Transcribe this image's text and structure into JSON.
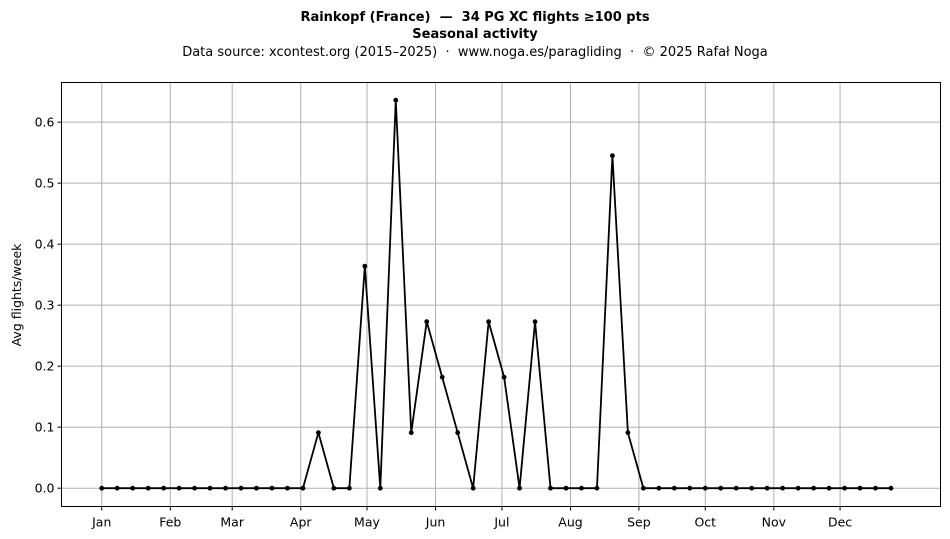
{
  "chart_data": {
    "type": "line",
    "title": "Rainkopf (France)  —  34 PG XC flights ≥100 pts",
    "title_line2": "Seasonal activity",
    "subtitle": "Data source: xcontest.org (2015–2025)  ·  www.noga.es/paragliding  ·  © 2025 Rafał Noga",
    "ylabel": "Avg flights/week",
    "xlabel": "",
    "x_ticks": [
      {
        "label": "Jan",
        "week": 1
      },
      {
        "label": "Feb",
        "week": 5.43
      },
      {
        "label": "Mar",
        "week": 9.43
      },
      {
        "label": "Apr",
        "week": 13.86
      },
      {
        "label": "May",
        "week": 18.14
      },
      {
        "label": "Jun",
        "week": 22.57
      },
      {
        "label": "Jul",
        "week": 26.86
      },
      {
        "label": "Aug",
        "week": 31.29
      },
      {
        "label": "Sep",
        "week": 35.71
      },
      {
        "label": "Oct",
        "week": 40
      },
      {
        "label": "Nov",
        "week": 44.43
      },
      {
        "label": "Dec",
        "week": 48.71
      }
    ],
    "y_ticks": [
      "0.0",
      "0.1",
      "0.2",
      "0.3",
      "0.4",
      "0.5",
      "0.6"
    ],
    "xlim": [
      -1.6,
      55.2
    ],
    "ylim": [
      -0.03,
      0.665
    ],
    "grid": true,
    "x": [
      1,
      2,
      3,
      4,
      5,
      6,
      7,
      8,
      9,
      10,
      11,
      12,
      13,
      14,
      15,
      16,
      17,
      18,
      19,
      20,
      21,
      22,
      23,
      24,
      25,
      26,
      27,
      28,
      29,
      30,
      31,
      32,
      33,
      34,
      35,
      36,
      37,
      38,
      39,
      40,
      41,
      42,
      43,
      44,
      45,
      46,
      47,
      48,
      49,
      50,
      51,
      52
    ],
    "series": [
      {
        "values": [
          0,
          0,
          0,
          0,
          0,
          0,
          0,
          0,
          0,
          0,
          0,
          0,
          0,
          0,
          0.091,
          0,
          0,
          0.364,
          0,
          0.636,
          0.091,
          0.273,
          0.182,
          0.091,
          0,
          0.273,
          0.182,
          0,
          0.273,
          0,
          0,
          0,
          0,
          0.545,
          0.091,
          0,
          0,
          0,
          0,
          0,
          0,
          0,
          0,
          0,
          0,
          0,
          0,
          0,
          0,
          0,
          0,
          0
        ],
        "color": "#000000"
      }
    ]
  }
}
